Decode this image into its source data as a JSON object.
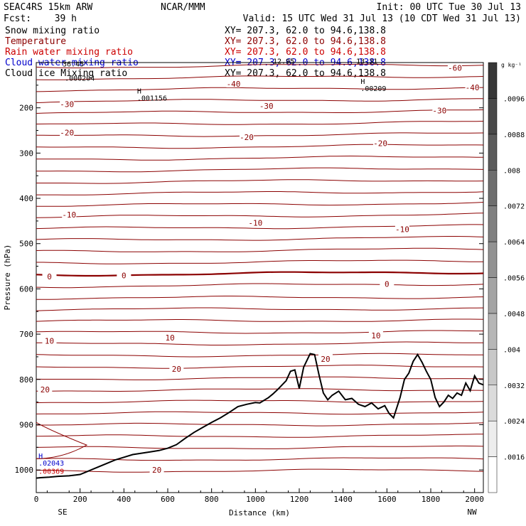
{
  "header": {
    "model": "SEAC4RS 15km ARW",
    "org": "NCAR/MMM",
    "init": "Init: 00 UTC Tue 30 Jul 13",
    "fcst_label": "Fcst:",
    "fcst_value": "39 h",
    "valid": "Valid: 15 UTC Wed 31 Jul 13 (10 CDT Wed 31 Jul 13)"
  },
  "fields": [
    {
      "name": "Snow mixing ratio",
      "xy": "XY= 207.3, 62.0 to  94.6,138.8",
      "color": "#000000"
    },
    {
      "name": "Temperature",
      "xy": "XY= 207.3, 62.0 to  94.6,138.8",
      "color": "#8b0000"
    },
    {
      "name": "Rain water mixing ratio",
      "xy": "XY= 207.3, 62.0 to  94.6,138.8",
      "color": "#cc0000"
    },
    {
      "name": "Cloud water mixing ratio",
      "xy": "XY= 207.3, 62.0 to  94.6,138.8",
      "color": "#0000cc"
    },
    {
      "name": "Cloud ice Mixing ratio",
      "xy": "XY= 207.3, 62.0 to  94.6,138.8",
      "color": "#000000"
    }
  ],
  "colors": {
    "isotherm": "#8b0000",
    "terrain": "#000000",
    "rain": "#cc0000",
    "cloud_water": "#0000cc",
    "snow": "#000000"
  },
  "chart_data": {
    "type": "cross-section",
    "xlabel": "Distance (km)",
    "ylabel": "Pressure (hPa)",
    "xlim": [
      0,
      2040
    ],
    "ylim": [
      1050,
      100
    ],
    "x_ticks": [
      0,
      200,
      400,
      600,
      800,
      1000,
      1200,
      1400,
      1600,
      1800,
      2000
    ],
    "y_ticks": [
      200,
      300,
      400,
      500,
      600,
      700,
      800,
      900,
      1000
    ],
    "x_end_labels": {
      "left": "SE",
      "right": "NW"
    },
    "isotherm_interval_C": 5,
    "isotherm_labels": [
      {
        "x": 60,
        "p": 573,
        "text": "0"
      },
      {
        "x": 400,
        "p": 570,
        "text": "0"
      },
      {
        "x": 1600,
        "p": 589,
        "text": "0"
      },
      {
        "x": 60,
        "p": 715,
        "text": "10"
      },
      {
        "x": 610,
        "p": 708,
        "text": "10"
      },
      {
        "x": 1550,
        "p": 703,
        "text": "10"
      },
      {
        "x": 40,
        "p": 822,
        "text": "20"
      },
      {
        "x": 640,
        "p": 777,
        "text": "20"
      },
      {
        "x": 1320,
        "p": 755,
        "text": "20"
      },
      {
        "x": 550,
        "p": 1000,
        "text": "20"
      },
      {
        "x": 150,
        "p": 436,
        "text": "-10"
      },
      {
        "x": 1000,
        "p": 454,
        "text": "-10"
      },
      {
        "x": 1670,
        "p": 468,
        "text": "-10"
      },
      {
        "x": 140,
        "p": 255,
        "text": "-20"
      },
      {
        "x": 960,
        "p": 265,
        "text": "-20"
      },
      {
        "x": 1570,
        "p": 278,
        "text": "-20"
      },
      {
        "x": 140,
        "p": 192,
        "text": "-30"
      },
      {
        "x": 1050,
        "p": 196,
        "text": "-30"
      },
      {
        "x": 1840,
        "p": 206,
        "text": "-30"
      },
      {
        "x": 900,
        "p": 147,
        "text": "-40"
      },
      {
        "x": 1990,
        "p": 155,
        "text": "-40"
      },
      {
        "x": 1910,
        "p": 112,
        "text": "-60"
      }
    ],
    "terrain": {
      "x": [
        0,
        20,
        60,
        100,
        150,
        200,
        240,
        280,
        320,
        360,
        400,
        440,
        480,
        520,
        560,
        600,
        640,
        680,
        720,
        760,
        800,
        840,
        880,
        920,
        960,
        1000,
        1020,
        1060,
        1080,
        1100,
        1140,
        1160,
        1180,
        1200,
        1220,
        1250,
        1270,
        1290,
        1310,
        1330,
        1350,
        1380,
        1410,
        1440,
        1470,
        1500,
        1530,
        1560,
        1590,
        1610,
        1630,
        1660,
        1680,
        1700,
        1720,
        1740,
        1760,
        1780,
        1800,
        1820,
        1840,
        1860,
        1880,
        1900,
        1920,
        1940,
        1960,
        1980,
        2000,
        2020,
        2040
      ],
      "p": [
        1018,
        1017,
        1016,
        1014,
        1013,
        1010,
        1002,
        994,
        986,
        978,
        972,
        966,
        963,
        960,
        957,
        952,
        944,
        930,
        917,
        906,
        895,
        885,
        873,
        860,
        855,
        851,
        852,
        840,
        832,
        823,
        803,
        782,
        779,
        820,
        773,
        743,
        745,
        790,
        830,
        845,
        835,
        826,
        845,
        842,
        855,
        860,
        852,
        865,
        858,
        875,
        885,
        840,
        800,
        786,
        760,
        745,
        762,
        782,
        800,
        840,
        860,
        850,
        835,
        842,
        830,
        835,
        808,
        825,
        792,
        808,
        812
      ]
    },
    "annotations": [
      {
        "x": 130,
        "p": 140,
        "text": ".000204",
        "color": "#000000"
      },
      {
        "x": 460,
        "p": 184,
        "marker": "H",
        "text": ".001156",
        "color": "#000000"
      },
      {
        "x": 1480,
        "p": 163,
        "marker": "H",
        "text": ".00209",
        "color": "#000000"
      },
      {
        "x": 120,
        "p": 109,
        "text": "36.45",
        "color": "#000000"
      },
      {
        "x": 1080,
        "p": 102,
        "text": "12.95",
        "color": "#000000"
      },
      {
        "x": 1460,
        "p": 102,
        "text": "13.31",
        "color": "#000000"
      },
      {
        "x": 10,
        "p": 990,
        "marker": "H",
        "text": ".02043",
        "color": "#0000cc"
      },
      {
        "x": 10,
        "p": 1008,
        "text": ".00369",
        "color": "#cc0000"
      }
    ],
    "colorbar": {
      "unit": "g kg⁻¹",
      "levels": [
        0.0016,
        0.0024,
        0.0032,
        0.004,
        0.0048,
        0.0056,
        0.0064,
        0.0072,
        0.008,
        0.0088,
        0.0096
      ],
      "labels": [
        ".0016",
        ".0024",
        ".0032",
        ".004",
        ".0048",
        ".0056",
        ".0064",
        ".0072",
        ".008",
        ".0088",
        ".0096"
      ]
    }
  }
}
